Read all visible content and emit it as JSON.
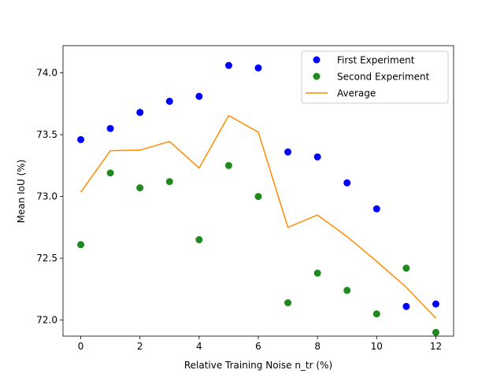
{
  "chart_data": {
    "type": "scatter",
    "title": "",
    "xlabel": "Relative Training Noise n_tr (%)",
    "ylabel": "Mean IoU (%)",
    "xlim": [
      -0.6,
      12.6
    ],
    "ylim": [
      71.87,
      74.22
    ],
    "xticks": [
      0,
      2,
      4,
      6,
      8,
      10,
      12
    ],
    "yticks": [
      72.0,
      72.5,
      73.0,
      73.5,
      74.0
    ],
    "xtick_labels": [
      "0",
      "2",
      "4",
      "6",
      "8",
      "10",
      "12"
    ],
    "ytick_labels": [
      "72.0",
      "72.5",
      "73.0",
      "73.5",
      "74.0"
    ],
    "grid": false,
    "legend_position": "top-right",
    "series": [
      {
        "name": "First Experiment",
        "kind": "scatter",
        "color": "#0000ff",
        "x": [
          0,
          1,
          2,
          3,
          4,
          5,
          6,
          7,
          8,
          9,
          10,
          11,
          12
        ],
        "y": [
          73.46,
          73.55,
          73.68,
          73.77,
          73.81,
          74.06,
          74.04,
          73.36,
          73.32,
          73.11,
          72.9,
          72.11,
          72.13
        ]
      },
      {
        "name": "Second Experiment",
        "kind": "scatter",
        "color": "#1f8a1f",
        "x": [
          0,
          1,
          2,
          3,
          4,
          5,
          6,
          7,
          8,
          9,
          10,
          11,
          12
        ],
        "y": [
          72.61,
          73.19,
          73.07,
          73.12,
          72.65,
          73.25,
          73.0,
          72.14,
          72.38,
          72.24,
          72.05,
          72.42,
          71.9
        ]
      },
      {
        "name": "Average",
        "kind": "line",
        "color": "#ff8c00",
        "x": [
          0,
          1,
          2,
          3,
          4,
          5,
          6,
          7,
          8,
          9,
          10,
          11,
          12
        ],
        "y": [
          73.035,
          73.37,
          73.375,
          73.445,
          73.23,
          73.655,
          73.52,
          72.75,
          72.85,
          72.675,
          72.475,
          72.265,
          72.015
        ]
      }
    ]
  }
}
